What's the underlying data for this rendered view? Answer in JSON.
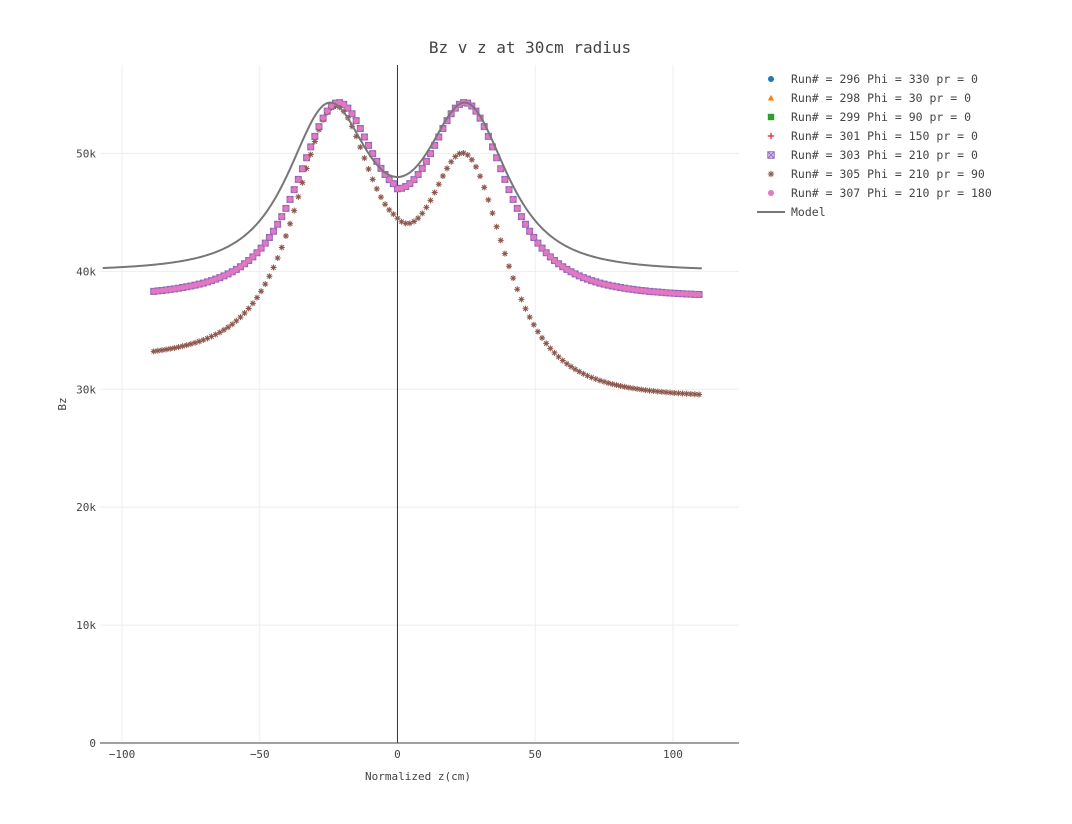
{
  "chart_data": {
    "type": "scatter",
    "title": "Bz v z at 30cm radius",
    "xlabel": "Normalized z(cm)",
    "ylabel": "Bz",
    "xlim": [
      -108,
      124
    ],
    "ylim": [
      0,
      57500
    ],
    "x_ticks": [
      -100,
      -50,
      0,
      50,
      100
    ],
    "x_tick_labels": [
      "−100",
      "−50",
      "0",
      "50",
      "100"
    ],
    "y_ticks": [
      0,
      10000,
      20000,
      30000,
      40000,
      50000
    ],
    "y_tick_labels": [
      "0",
      "10k",
      "20k",
      "30k",
      "40k",
      "50k"
    ],
    "grid": true,
    "legend_position": "top-right",
    "series": [
      {
        "name": "Run# = 296 Phi =  330 pr =  0",
        "marker": "circle",
        "color": "#1f77b4",
        "model": {
          "peak": 54300,
          "trough": 47000,
          "peak_z": 25,
          "left_shift": 3.0,
          "right_scale": 1.0
        },
        "x_range": [
          -88.5,
          110.5
        ],
        "step": 1.5
      },
      {
        "name": "Run# = 298 Phi =  30 pr =  0",
        "marker": "triangle",
        "color": "#ff7f0e",
        "model": {
          "peak": 54300,
          "trough": 47000,
          "peak_z": 25,
          "left_shift": 3.0,
          "right_scale": 1.0
        },
        "x_range": [
          -88.5,
          110.5
        ],
        "step": 1.5
      },
      {
        "name": "Run# = 299 Phi =  90 pr =  0",
        "marker": "square",
        "color": "#2ca02c",
        "model": {
          "peak": 54300,
          "trough": 47000,
          "peak_z": 25,
          "left_shift": 3.0,
          "right_scale": 1.0
        },
        "x_range": [
          -88.5,
          110.5
        ],
        "step": 1.5
      },
      {
        "name": "Run# = 301 Phi =  150 pr =  0",
        "marker": "cross",
        "color": "#d62728",
        "model": {
          "peak": 54300,
          "trough": 47000,
          "peak_z": 25,
          "left_shift": 3.0,
          "right_scale": 1.0
        },
        "x_range": [
          -88.5,
          110.5
        ],
        "step": 1.5
      },
      {
        "name": "Run# = 303 Phi =  210 pr =  0",
        "marker": "square-x",
        "color": "#9467bd",
        "model": {
          "peak": 54300,
          "trough": 47000,
          "peak_z": 25,
          "left_shift": 3.0,
          "right_scale": 1.0
        },
        "x_range": [
          -88.5,
          110.5
        ],
        "step": 1.5
      },
      {
        "name": "Run# = 305 Phi =  210 pr =  90",
        "marker": "asterisk",
        "color": "#8c564b",
        "model": {
          "peak": 54000,
          "trough": 44500,
          "peak_z": 25,
          "left_shift": 2.0,
          "right_scale": 0.9
        },
        "x_range": [
          -88.5,
          110.5
        ],
        "step": 1.5
      },
      {
        "name": "Run# = 307 Phi =  210 pr =  180",
        "marker": "circle",
        "color": "#e377c2",
        "model": {
          "peak": 54300,
          "trough": 47000,
          "peak_z": 25,
          "left_shift": 3.0,
          "right_scale": 1.0
        },
        "x_range": [
          -88.5,
          110.5
        ],
        "step": 1.5
      }
    ],
    "model_line": {
      "name": "Model",
      "color": "#777777",
      "model": {
        "peak": 54300,
        "trough": 48000,
        "peak_z": 25,
        "left_shift": 0.0,
        "right_scale": 1.0
      },
      "x_range": [
        -107,
        110.5
      ],
      "step": 0.5
    }
  }
}
